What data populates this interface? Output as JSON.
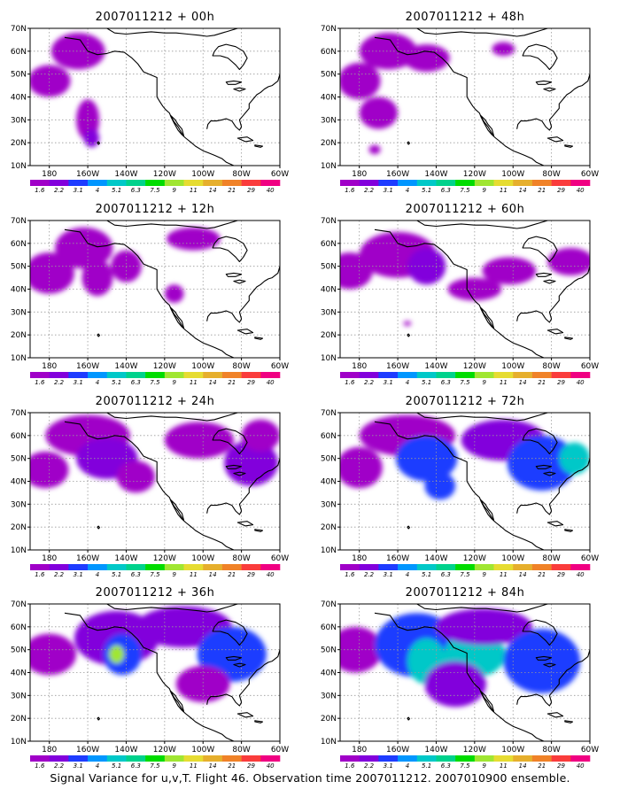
{
  "caption": "Signal Variance for u,v,T. Flight 46. Observation time 2007011212. 2007010900 ensemble.",
  "colorbar": {
    "labels": [
      "1.6",
      "2.2",
      "3.1",
      "4",
      "5.1",
      "6.3",
      "7.5",
      "9",
      "11",
      "14",
      "21",
      "29",
      "40"
    ],
    "colors": [
      "#a000c8",
      "#8200dc",
      "#1e3cff",
      "#0096ff",
      "#00c8c8",
      "#00d28c",
      "#00dc00",
      "#a0e632",
      "#e6dc32",
      "#e6af2d",
      "#f08228",
      "#fa3c3c",
      "#f00082"
    ]
  },
  "axes": {
    "lat_labels": [
      "10N",
      "20N",
      "30N",
      "40N",
      "50N",
      "60N",
      "70N"
    ],
    "lon_labels": [
      "180",
      "160W",
      "140W",
      "120W",
      "100W",
      "80W",
      "60W"
    ]
  },
  "panels": [
    {
      "title": "2007011212 + 00h",
      "level": 0
    },
    {
      "title": "2007011212 + 48h",
      "level": 4
    },
    {
      "title": "2007011212 + 12h",
      "level": 1
    },
    {
      "title": "2007011212 + 60h",
      "level": 5
    },
    {
      "title": "2007011212 + 24h",
      "level": 2
    },
    {
      "title": "2007011212 + 72h",
      "level": 6
    },
    {
      "title": "2007011212 + 36h",
      "level": 3
    },
    {
      "title": "2007011212 + 84h",
      "level": 7
    }
  ]
}
